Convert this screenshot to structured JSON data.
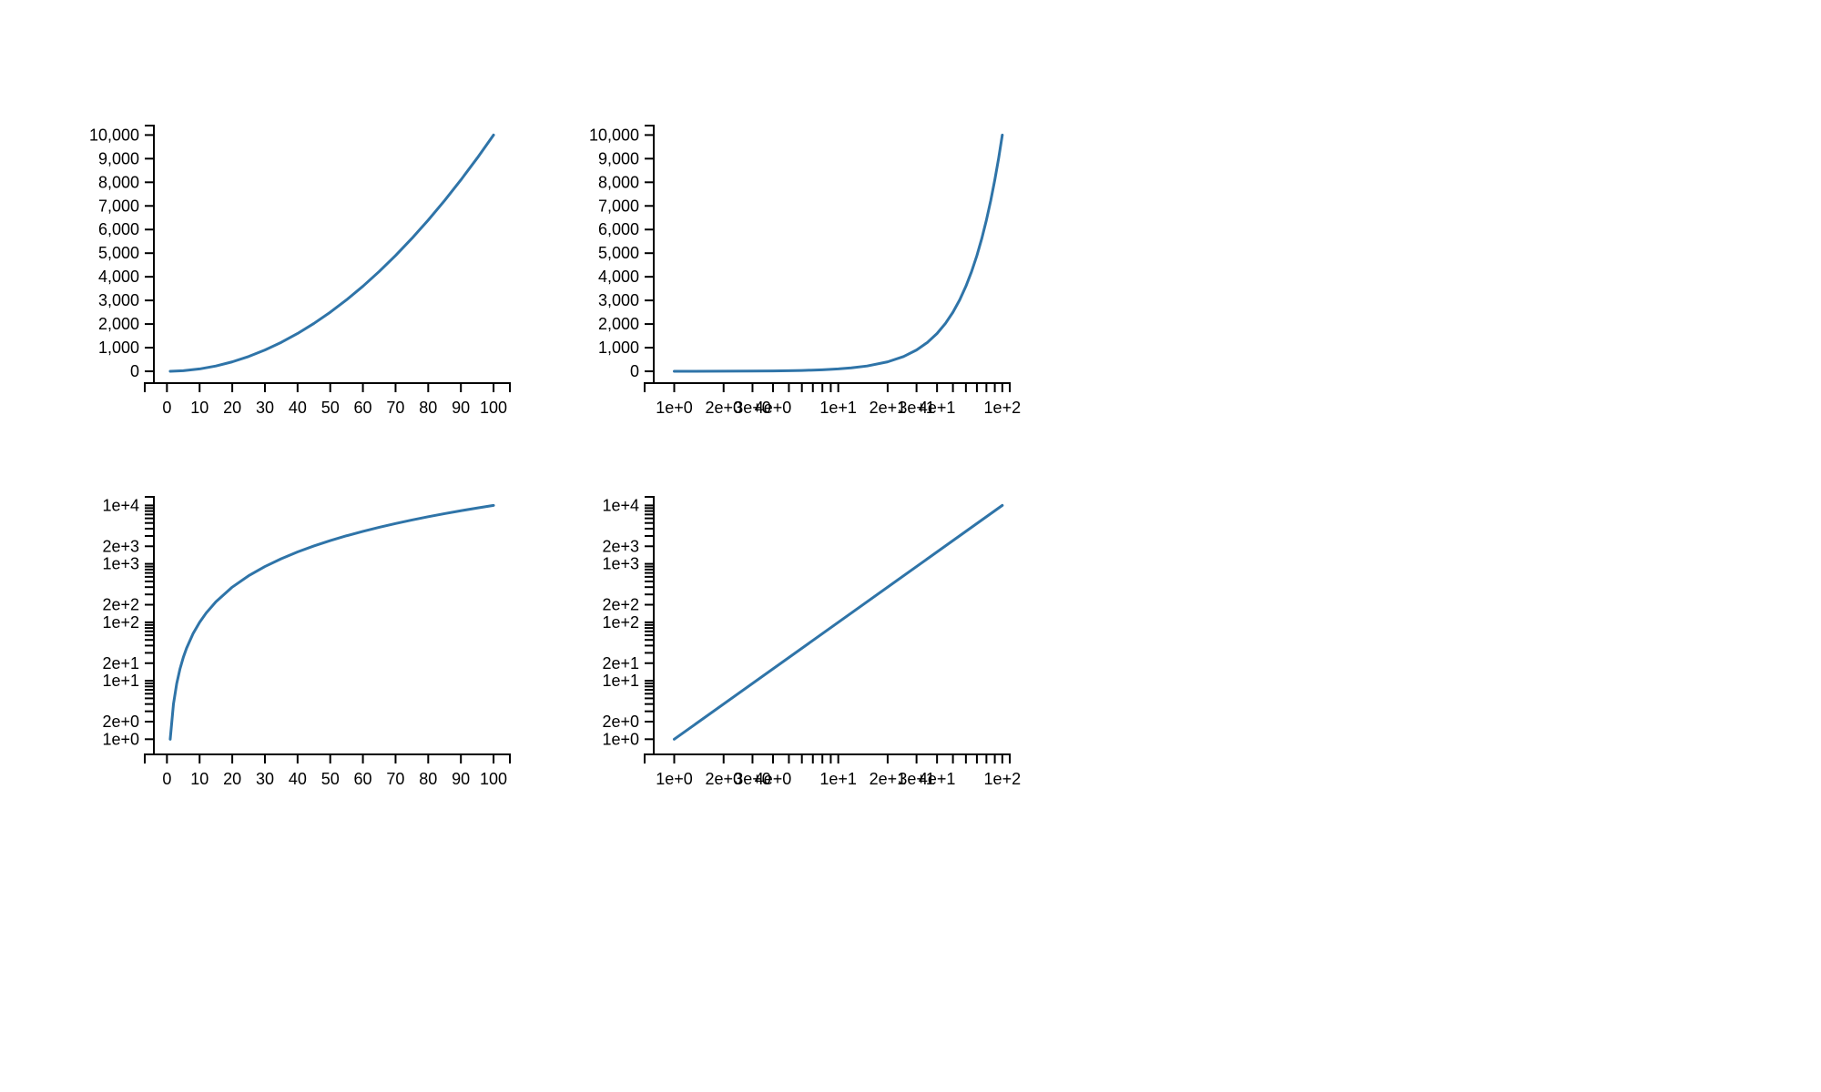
{
  "colors": {
    "series": "#2f74a8",
    "axis": "#000000",
    "background": "#ffffff"
  },
  "chart_data": [
    {
      "type": "line",
      "title": "",
      "xlabel": "",
      "ylabel": "",
      "xscale": "linear",
      "yscale": "linear",
      "xlim": [
        -4,
        105
      ],
      "ylim": [
        -500,
        10400
      ],
      "grid": false,
      "x_ticks": [
        0,
        10,
        20,
        30,
        40,
        50,
        60,
        70,
        80,
        90,
        100
      ],
      "x_tick_labels": [
        "0",
        "10",
        "20",
        "30",
        "40",
        "50",
        "60",
        "70",
        "80",
        "90",
        "100"
      ],
      "y_ticks": [
        0,
        1000,
        2000,
        3000,
        4000,
        5000,
        6000,
        7000,
        8000,
        9000,
        10000
      ],
      "y_tick_labels": [
        "0",
        "1,000",
        "2,000",
        "3,000",
        "4,000",
        "5,000",
        "6,000",
        "7,000",
        "8,000",
        "9,000",
        "10,000"
      ],
      "series": [
        {
          "x": [
            1,
            5,
            10,
            15,
            20,
            25,
            30,
            35,
            40,
            45,
            50,
            55,
            60,
            65,
            70,
            75,
            80,
            85,
            90,
            95,
            100
          ],
          "y": [
            1,
            25,
            100,
            225,
            400,
            625,
            900,
            1225,
            1600,
            2025,
            2500,
            3025,
            3600,
            4225,
            4900,
            5625,
            6400,
            7225,
            8100,
            9025,
            10000
          ]
        }
      ]
    },
    {
      "type": "line",
      "title": "",
      "xlabel": "",
      "ylabel": "",
      "xscale": "log",
      "yscale": "linear",
      "xlim": [
        0.75,
        111
      ],
      "ylim": [
        -500,
        10400
      ],
      "grid": false,
      "x_ticks": [
        1,
        2,
        3,
        4,
        5,
        6,
        7,
        8,
        9,
        10,
        20,
        30,
        40,
        50,
        60,
        70,
        80,
        90,
        100
      ],
      "x_labeled_ticks": [
        1,
        2,
        3,
        4,
        10,
        20,
        30,
        40,
        100
      ],
      "x_tick_labels": [
        "1e+0",
        "2e+0",
        "3e+0",
        "4e+0",
        "1e+1",
        "2e+1",
        "3e+1",
        "4e+1",
        "1e+2"
      ],
      "y_ticks": [
        0,
        1000,
        2000,
        3000,
        4000,
        5000,
        6000,
        7000,
        8000,
        9000,
        10000
      ],
      "y_tick_labels": [
        "0",
        "1,000",
        "2,000",
        "3,000",
        "4,000",
        "5,000",
        "6,000",
        "7,000",
        "8,000",
        "9,000",
        "10,000"
      ],
      "series": [
        {
          "x": [
            1,
            2,
            3,
            4,
            5,
            6,
            8,
            10,
            12,
            15,
            20,
            25,
            30,
            35,
            40,
            45,
            50,
            55,
            60,
            65,
            70,
            75,
            80,
            85,
            90,
            95,
            100
          ],
          "y": [
            1,
            4,
            9,
            16,
            25,
            36,
            64,
            100,
            144,
            225,
            400,
            625,
            900,
            1225,
            1600,
            2025,
            2500,
            3025,
            3600,
            4225,
            4900,
            5625,
            6400,
            7225,
            8100,
            9025,
            10000
          ]
        }
      ]
    },
    {
      "type": "line",
      "title": "",
      "xlabel": "",
      "ylabel": "",
      "xscale": "linear",
      "yscale": "log",
      "xlim": [
        -4,
        105
      ],
      "ylim": [
        0.55,
        14000
      ],
      "grid": false,
      "x_ticks": [
        0,
        10,
        20,
        30,
        40,
        50,
        60,
        70,
        80,
        90,
        100
      ],
      "x_tick_labels": [
        "0",
        "10",
        "20",
        "30",
        "40",
        "50",
        "60",
        "70",
        "80",
        "90",
        "100"
      ],
      "y_ticks": [
        1,
        2,
        3,
        4,
        5,
        6,
        7,
        8,
        9,
        10,
        20,
        30,
        40,
        50,
        60,
        70,
        80,
        90,
        100,
        200,
        300,
        400,
        500,
        600,
        700,
        800,
        900,
        1000,
        2000,
        3000,
        4000,
        5000,
        6000,
        7000,
        8000,
        9000,
        10000
      ],
      "y_labeled_ticks": [
        1,
        2,
        10,
        20,
        100,
        200,
        1000,
        2000,
        10000
      ],
      "y_tick_labels": [
        "1e+0",
        "2e+0",
        "1e+1",
        "2e+1",
        "1e+2",
        "2e+2",
        "1e+3",
        "2e+3",
        "1e+4"
      ],
      "series": [
        {
          "x": [
            1,
            2,
            3,
            4,
            5,
            6,
            8,
            10,
            12,
            15,
            20,
            25,
            30,
            35,
            40,
            45,
            50,
            55,
            60,
            65,
            70,
            75,
            80,
            85,
            90,
            95,
            100
          ],
          "y": [
            1,
            4,
            9,
            16,
            25,
            36,
            64,
            100,
            144,
            225,
            400,
            625,
            900,
            1225,
            1600,
            2025,
            2500,
            3025,
            3600,
            4225,
            4900,
            5625,
            6400,
            7225,
            8100,
            9025,
            10000
          ]
        }
      ]
    },
    {
      "type": "line",
      "title": "",
      "xlabel": "",
      "ylabel": "",
      "xscale": "log",
      "yscale": "log",
      "xlim": [
        0.75,
        111
      ],
      "ylim": [
        0.55,
        14000
      ],
      "grid": false,
      "x_ticks": [
        1,
        2,
        3,
        4,
        5,
        6,
        7,
        8,
        9,
        10,
        20,
        30,
        40,
        50,
        60,
        70,
        80,
        90,
        100
      ],
      "x_labeled_ticks": [
        1,
        2,
        3,
        4,
        10,
        20,
        30,
        40,
        100
      ],
      "x_tick_labels": [
        "1e+0",
        "2e+0",
        "3e+0",
        "4e+0",
        "1e+1",
        "2e+1",
        "3e+1",
        "4e+1",
        "1e+2"
      ],
      "y_ticks": [
        1,
        2,
        3,
        4,
        5,
        6,
        7,
        8,
        9,
        10,
        20,
        30,
        40,
        50,
        60,
        70,
        80,
        90,
        100,
        200,
        300,
        400,
        500,
        600,
        700,
        800,
        900,
        1000,
        2000,
        3000,
        4000,
        5000,
        6000,
        7000,
        8000,
        9000,
        10000
      ],
      "y_labeled_ticks": [
        1,
        2,
        10,
        20,
        100,
        200,
        1000,
        2000,
        10000
      ],
      "y_tick_labels": [
        "1e+0",
        "2e+0",
        "1e+1",
        "2e+1",
        "1e+2",
        "2e+2",
        "1e+3",
        "2e+3",
        "1e+4"
      ],
      "series": [
        {
          "x": [
            1,
            100
          ],
          "y": [
            1,
            10000
          ]
        }
      ]
    }
  ]
}
